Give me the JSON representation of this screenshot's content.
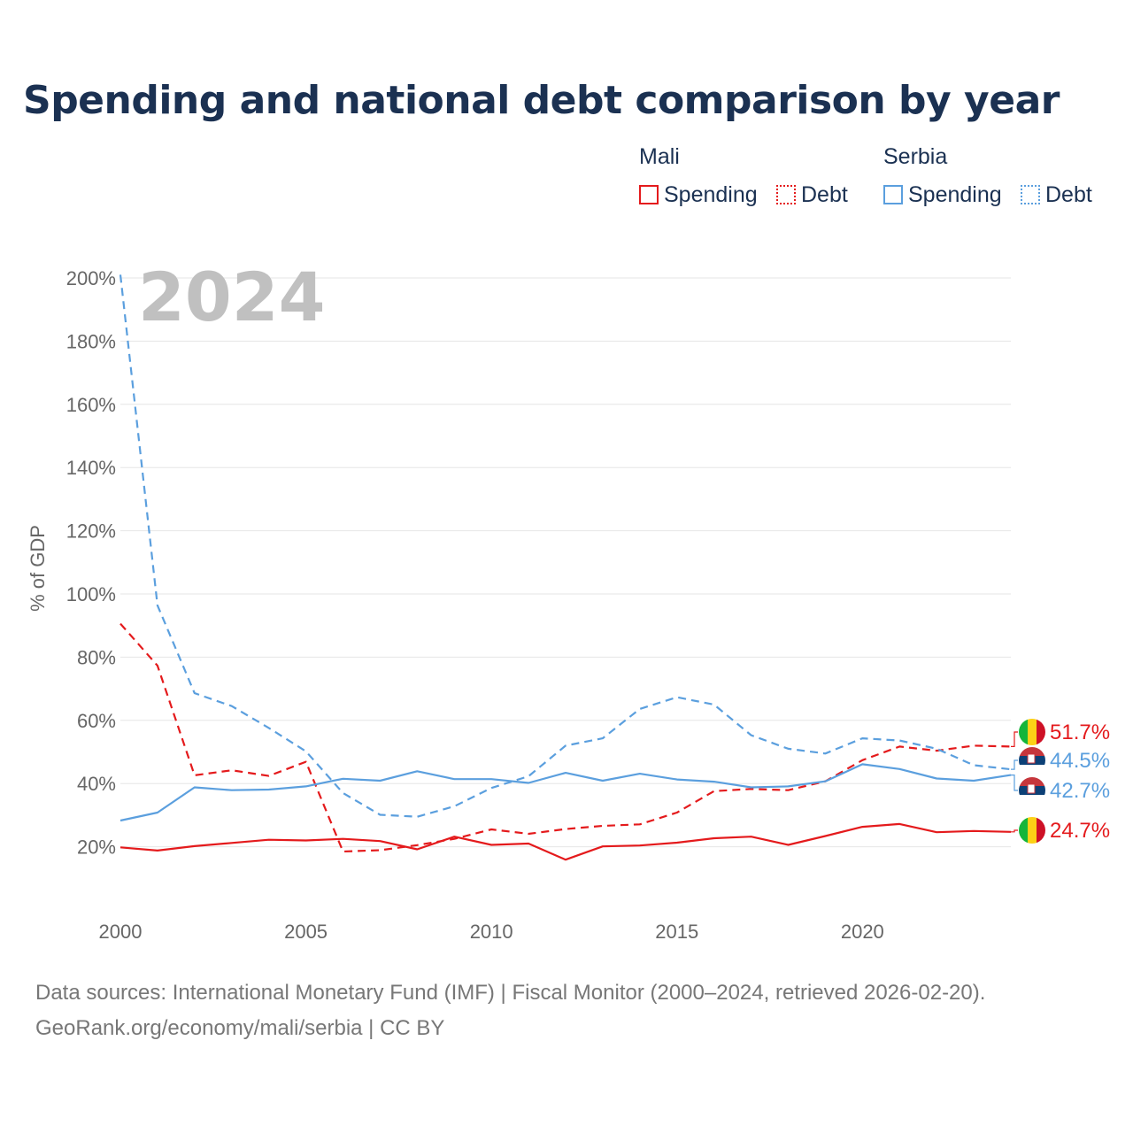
{
  "title": "Spending and national debt comparison by year",
  "legend": {
    "groups": [
      {
        "name": "Mali",
        "items": [
          {
            "label": "Spending"
          },
          {
            "label": "Debt"
          }
        ]
      },
      {
        "name": "Serbia",
        "items": [
          {
            "label": "Spending"
          },
          {
            "label": "Debt"
          }
        ]
      }
    ]
  },
  "colors": {
    "mali": "#e41a1c",
    "serbia": "#5b9fde",
    "grid": "#e6e6e6",
    "watermark": "#c0c0c0"
  },
  "chart_data": {
    "type": "line",
    "title": "Spending and national debt comparison by year",
    "xlabel": "",
    "ylabel": "% of GDP",
    "xlim": [
      2000,
      2024
    ],
    "ylim": [
      0,
      200
    ],
    "yticks": [
      20,
      40,
      60,
      80,
      100,
      120,
      140,
      160,
      180,
      200
    ],
    "ytick_labels": [
      "20%",
      "40%",
      "60%",
      "80%",
      "100%",
      "120%",
      "140%",
      "160%",
      "180%",
      "200%"
    ],
    "xticks": [
      2000,
      2005,
      2010,
      2015,
      2020
    ],
    "xtick_labels": [
      "2000",
      "2005",
      "2010",
      "2015",
      "2020"
    ],
    "year_label": "2024",
    "grid": true,
    "x": [
      2000,
      2001,
      2002,
      2003,
      2004,
      2005,
      2006,
      2007,
      2008,
      2009,
      2010,
      2011,
      2012,
      2013,
      2014,
      2015,
      2016,
      2017,
      2018,
      2019,
      2020,
      2021,
      2022,
      2023,
      2024
    ],
    "series": [
      {
        "name": "Mali Spending",
        "country": "Mali",
        "kind": "Spending",
        "dashed": false,
        "color": "#e41a1c",
        "values": [
          19.8,
          18.8,
          20.2,
          21.2,
          22.2,
          22.0,
          22.5,
          21.8,
          19.2,
          23.2,
          20.6,
          21.0,
          15.9,
          20.1,
          20.4,
          21.3,
          22.7,
          23.2,
          20.6,
          23.4,
          26.3,
          27.2,
          24.6,
          25.0,
          24.7
        ],
        "end_label": "24.7%"
      },
      {
        "name": "Mali Debt",
        "country": "Mali",
        "kind": "Debt",
        "dashed": true,
        "color": "#e41a1c",
        "values": [
          90.6,
          77.3,
          42.6,
          44.2,
          42.4,
          46.9,
          18.5,
          18.9,
          20.5,
          22.5,
          25.5,
          24.1,
          25.6,
          26.6,
          27.1,
          30.8,
          37.6,
          38.3,
          37.9,
          40.7,
          47.4,
          51.7,
          50.4,
          52.0,
          51.7
        ],
        "end_label": "51.7%"
      },
      {
        "name": "Serbia Spending",
        "country": "Serbia",
        "kind": "Spending",
        "dashed": false,
        "color": "#5b9fde",
        "values": [
          28.3,
          30.8,
          38.8,
          37.9,
          38.1,
          39.1,
          41.5,
          40.9,
          43.9,
          41.4,
          41.4,
          40.2,
          43.4,
          40.9,
          43.1,
          41.3,
          40.6,
          38.8,
          39.1,
          40.7,
          46.1,
          44.6,
          41.6,
          40.9,
          42.7
        ],
        "end_label": "42.7%"
      },
      {
        "name": "Serbia Debt",
        "country": "Serbia",
        "kind": "Debt",
        "dashed": true,
        "color": "#5b9fde",
        "values": [
          201.0,
          96.4,
          68.6,
          64.5,
          57.6,
          50.2,
          37.0,
          30.1,
          29.5,
          32.8,
          38.6,
          42.3,
          52.0,
          54.3,
          63.6,
          67.3,
          65.0,
          55.3,
          51.0,
          49.5,
          54.3,
          53.6,
          51.0,
          45.8,
          44.5
        ],
        "end_label": "44.5%"
      }
    ]
  },
  "footer": {
    "sources": "Data sources: International Monetary Fund (IMF) | Fiscal Monitor (2000–2024, retrieved 2026-02-20).",
    "credit": "GeoRank.org/economy/mali/serbia | CC BY"
  }
}
